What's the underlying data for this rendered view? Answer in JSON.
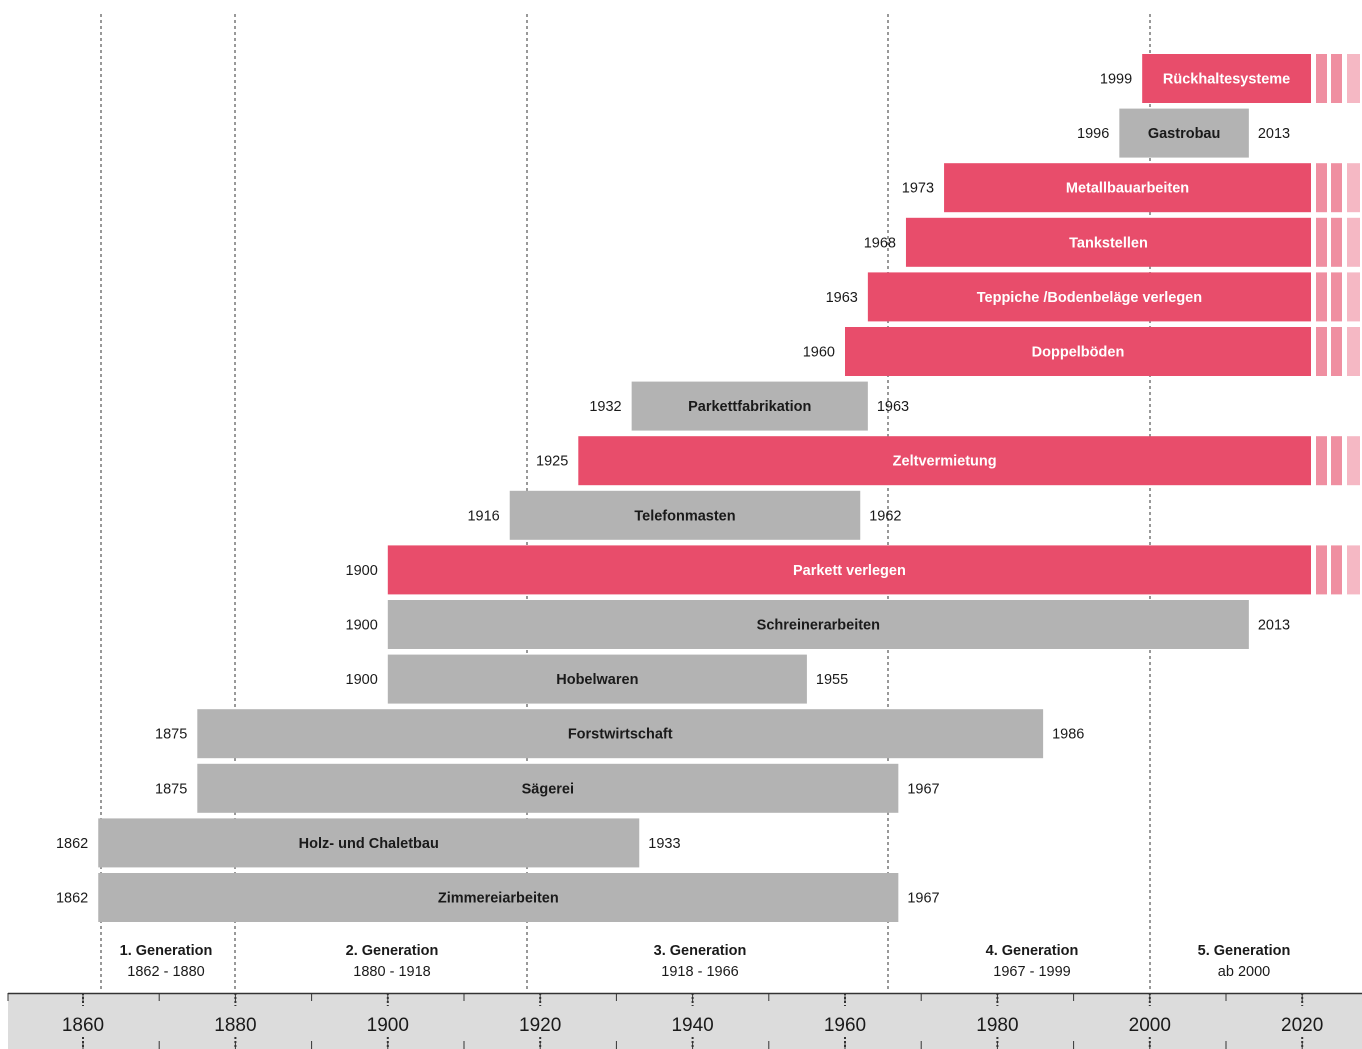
{
  "chart_data": {
    "type": "gantt",
    "xlim": [
      1857,
      2027
    ],
    "ticks": [
      1860,
      1880,
      1900,
      1920,
      1940,
      1960,
      1980,
      2000,
      2020
    ],
    "colors": {
      "active": "#e84d6b",
      "ended": "#b3b3b3",
      "active_fade_1": "#ef8fa1",
      "active_fade_2": "#f5b8c4",
      "axis_band": "#dcdcdc"
    },
    "bars": [
      {
        "label": "Rückhaltesysteme",
        "start": 1999,
        "end": null,
        "start_label": "1999",
        "end_label": "",
        "ongoing": true
      },
      {
        "label": "Gastrobau",
        "start": 1996,
        "end": 2013,
        "start_label": "1996",
        "end_label": "2013",
        "ongoing": false
      },
      {
        "label": "Metallbauarbeiten",
        "start": 1973,
        "end": null,
        "start_label": "1973",
        "end_label": "",
        "ongoing": true
      },
      {
        "label": "Tankstellen",
        "start": 1968,
        "end": null,
        "start_label": "1968",
        "end_label": "",
        "ongoing": true
      },
      {
        "label": "Teppiche /Bodenbeläge verlegen",
        "start": 1963,
        "end": null,
        "start_label": "1963",
        "end_label": "",
        "ongoing": true
      },
      {
        "label": "Doppelböden",
        "start": 1960,
        "end": null,
        "start_label": "1960",
        "end_label": "",
        "ongoing": true
      },
      {
        "label": "Parkettfabrikation",
        "start": 1932,
        "end": 1963,
        "start_label": "1932",
        "end_label": "1963",
        "ongoing": false
      },
      {
        "label": "Zeltvermietung",
        "start": 1925,
        "end": null,
        "start_label": "1925",
        "end_label": "",
        "ongoing": true
      },
      {
        "label": "Telefonmasten",
        "start": 1916,
        "end": 1962,
        "start_label": "1916",
        "end_label": "1962",
        "ongoing": false
      },
      {
        "label": "Parkett verlegen",
        "start": 1900,
        "end": null,
        "start_label": "1900",
        "end_label": "",
        "ongoing": true
      },
      {
        "label": "Schreinerarbeiten",
        "start": 1900,
        "end": 2013,
        "start_label": "1900",
        "end_label": "2013",
        "ongoing": false
      },
      {
        "label": "Hobelwaren",
        "start": 1900,
        "end": 1955,
        "start_label": "1900",
        "end_label": "1955",
        "ongoing": false
      },
      {
        "label": "Forstwirtschaft",
        "start": 1875,
        "end": 1986,
        "start_label": "1875",
        "end_label": "1986",
        "ongoing": false
      },
      {
        "label": "Sägerei",
        "start": 1875,
        "end": 1967,
        "start_label": "1875",
        "end_label": "1967",
        "ongoing": false
      },
      {
        "label": "Holz- und Chaletbau",
        "start": 1862,
        "end": 1933,
        "start_label": "1862",
        "end_label": "1933",
        "ongoing": false
      },
      {
        "label": "Zimmereiarbeiten",
        "start": 1862,
        "end": 1967,
        "start_label": "1862",
        "end_label": "1967",
        "ongoing": false
      }
    ],
    "generations": [
      {
        "name": "1. Generation",
        "range": "1862 - 1880",
        "start": 1862,
        "end": 1880
      },
      {
        "name": "2. Generation",
        "range": "1880 - 1918",
        "start": 1880,
        "end": 1918
      },
      {
        "name": "3. Generation",
        "range": "1918 - 1966",
        "start": 1918,
        "end": 1966
      },
      {
        "name": "4. Generation",
        "range": "1967 - 1999",
        "start": 1966,
        "end": 2000
      },
      {
        "name": "5. Generation",
        "range": "ab 2000",
        "start": 2000,
        "end": 2027
      }
    ],
    "generation_boundaries": [
      1862,
      1880,
      1918,
      1966,
      2000
    ]
  }
}
